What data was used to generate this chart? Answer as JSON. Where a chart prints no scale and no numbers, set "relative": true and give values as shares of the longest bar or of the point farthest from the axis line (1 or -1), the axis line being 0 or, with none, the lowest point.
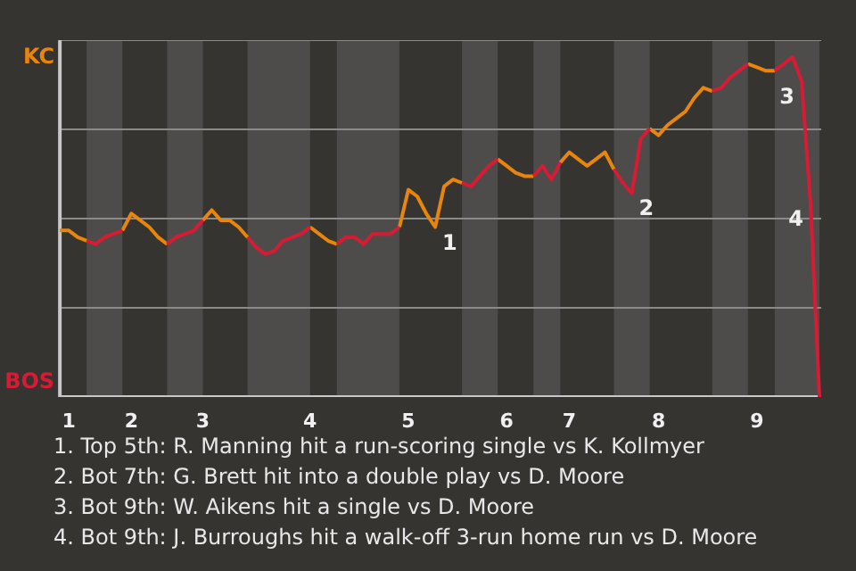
{
  "chart_data": {
    "type": "line",
    "relative": true,
    "categories": [
      null,
      "1",
      null,
      null,
      null,
      null,
      null,
      null,
      "2",
      null,
      null,
      null,
      null,
      null,
      null,
      null,
      "3",
      null,
      null,
      null,
      null,
      null,
      null,
      null,
      null,
      null,
      null,
      null,
      "4",
      null,
      null,
      null,
      null,
      null,
      null,
      null,
      null,
      null,
      null,
      "5",
      null,
      null,
      null,
      null,
      null,
      null,
      null,
      null,
      null,
      null,
      "6",
      null,
      null,
      null,
      null,
      null,
      null,
      "7",
      null,
      null,
      null,
      null,
      null,
      null,
      null,
      null,
      null,
      "8",
      null,
      null,
      null,
      null,
      null,
      null,
      null,
      null,
      null,
      null,
      "9",
      null,
      null,
      null,
      null,
      null,
      null,
      null
    ],
    "series": [
      {
        "name": "KC",
        "color": "#e8850c",
        "values": [
          0.49,
          0.49,
          0.47,
          0.46,
          null,
          null,
          null,
          0.49,
          0.54,
          0.52,
          0.5,
          0.47,
          0.45,
          null,
          null,
          null,
          0.52,
          0.55,
          0.52,
          0.52,
          0.5,
          0.47,
          null,
          null,
          null,
          null,
          null,
          null,
          0.5,
          0.48,
          0.46,
          0.45,
          null,
          null,
          null,
          null,
          null,
          null,
          0.5,
          0.61,
          0.59,
          0.54,
          0.5,
          0.62,
          0.64,
          0.63,
          null,
          null,
          null,
          0.7,
          0.68,
          0.66,
          0.65,
          0.65,
          null,
          null,
          0.69,
          0.72,
          0.7,
          0.68,
          0.7,
          0.72,
          0.67,
          null,
          null,
          null,
          0.79,
          0.77,
          0.8,
          0.82,
          0.84,
          0.88,
          0.91,
          0.9,
          null,
          null,
          null,
          0.98,
          0.97,
          0.96,
          0.96,
          null,
          null,
          null,
          null,
          null
        ]
      },
      {
        "name": "BOS",
        "color": "#d81b35",
        "values": [
          null,
          null,
          null,
          0.46,
          0.45,
          0.47,
          0.48,
          0.49,
          null,
          null,
          null,
          null,
          0.45,
          0.47,
          0.48,
          0.49,
          0.52,
          null,
          null,
          null,
          null,
          0.47,
          0.44,
          0.42,
          0.43,
          0.46,
          0.47,
          0.48,
          0.5,
          null,
          null,
          0.45,
          0.47,
          0.47,
          0.45,
          0.48,
          0.48,
          0.48,
          0.5,
          null,
          null,
          null,
          null,
          null,
          null,
          0.63,
          0.62,
          0.65,
          0.68,
          0.7,
          null,
          null,
          null,
          0.65,
          0.68,
          0.64,
          0.69,
          null,
          null,
          null,
          null,
          null,
          0.67,
          0.63,
          0.6,
          0.76,
          0.79,
          null,
          null,
          null,
          null,
          null,
          null,
          0.9,
          0.91,
          0.94,
          0.96,
          0.98,
          null,
          null,
          0.96,
          0.98,
          1.0,
          0.93,
          0.57,
          0.0
        ]
      }
    ],
    "grid": "y",
    "annotations": [
      "1",
      "2",
      "3",
      "4",
      "1. Top 5th: R. Manning hit a run-scoring single vs K. Kollmyer",
      "2. Bot 7th: G. Brett hit into a double play vs D. Moore",
      "3. Bot 9th: W. Aikens hit a single vs D. Moore",
      "4. Bot 9th: J. Burroughs hit a walk-off 3-run home run vs D. Moore"
    ]
  }
}
